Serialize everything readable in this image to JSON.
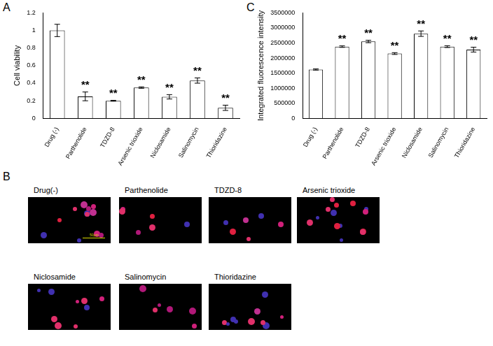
{
  "chart_data": [
    {
      "type": "bar",
      "title": "A",
      "categories": [
        "Drug (-)",
        "Parthenolide",
        "TDZD-8",
        "Arsenic trioxide",
        "Niclosamide",
        "Salinomycin",
        "Thioridazine"
      ],
      "values": [
        1.0,
        0.25,
        0.2,
        0.35,
        0.245,
        0.43,
        0.12
      ],
      "errors": [
        0.07,
        0.05,
        0.005,
        0.008,
        0.025,
        0.03,
        0.03
      ],
      "color": "#ffffff",
      "y_label": "Cell viability",
      "ylim": [
        0,
        1.2
      ],
      "yticks": [
        0,
        0.2,
        0.4,
        0.6,
        0.8,
        1,
        1.2
      ],
      "grid": false,
      "annotations": [
        {
          "category": "Parthenolide",
          "text": "**"
        },
        {
          "category": "TDZD-8",
          "text": "**"
        },
        {
          "category": "Arsenic trioxide",
          "text": "**"
        },
        {
          "category": "Niclosamide",
          "text": "**"
        },
        {
          "category": "Salinomycin",
          "text": "**"
        },
        {
          "category": "Thioridazine",
          "text": "**"
        }
      ]
    },
    {
      "type": "bar",
      "title": "C",
      "categories": [
        "Drug (-)",
        "Parthenolide",
        "TDZD-8",
        "Arsenic trioxide",
        "Niclosamide",
        "Salinomycin",
        "Thioridazine"
      ],
      "values": [
        1620000,
        2380000,
        2550000,
        2150000,
        2810000,
        2380000,
        2280000
      ],
      "errors": [
        20000,
        25000,
        40000,
        30000,
        90000,
        30000,
        80000
      ],
      "color": "#ffffff",
      "y_label": "Integrated fluorescence intensity",
      "ylim": [
        0,
        3500000
      ],
      "yticks": [
        0,
        500000,
        1000000,
        1500000,
        2000000,
        2500000,
        3000000,
        3500000
      ],
      "grid": false,
      "annotations": [
        {
          "category": "Parthenolide",
          "text": "**"
        },
        {
          "category": "TDZD-8",
          "text": "**"
        },
        {
          "category": "Arsenic trioxide",
          "text": "**"
        },
        {
          "category": "Niclosamide",
          "text": "**"
        },
        {
          "category": "Salinomycin",
          "text": "**"
        },
        {
          "category": "Thioridazine",
          "text": "**"
        }
      ]
    }
  ],
  "panel_b": {
    "title": "B",
    "images": [
      {
        "label": "Drug(-)"
      },
      {
        "label": "Parthenolide"
      },
      {
        "label": "TDZD-8"
      },
      {
        "label": "Arsenic trioxide"
      },
      {
        "label": "Niclosamide"
      },
      {
        "label": "Salinomycin"
      },
      {
        "label": "Thioridazine"
      }
    ],
    "scale_bar": "50μm"
  }
}
